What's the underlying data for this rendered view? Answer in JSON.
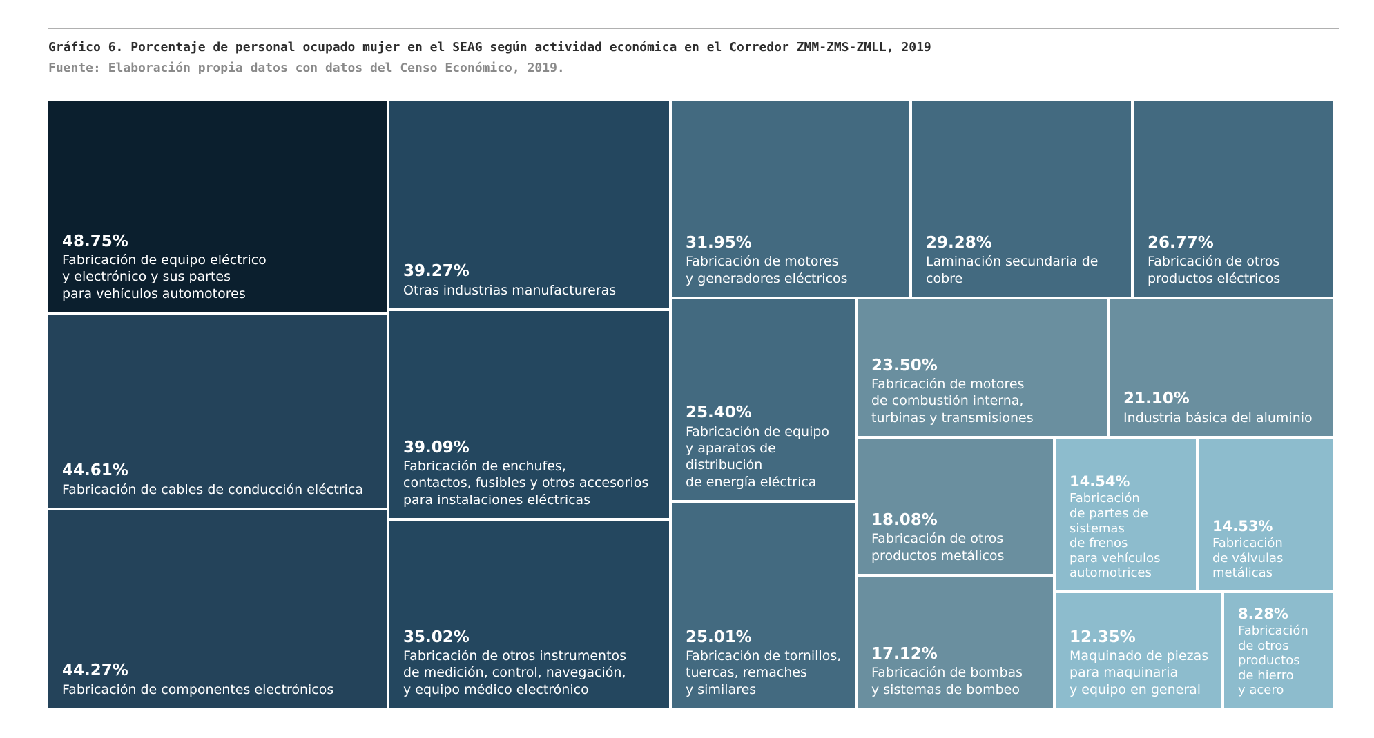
{
  "header": {
    "title": "Gráfico 6. Porcentaje de personal ocupado mujer en el SEAG según actividad económica en el Corredor ZMM-ZMS-ZMLL, 2019",
    "source": "Fuente: Elaboración propia datos con datos del Censo Económico, 2019."
  },
  "chart_data": {
    "type": "treemap",
    "title": "Gráfico 6. Porcentaje de personal ocupado mujer en el SEAG según actividad económica en el Corredor ZMM-ZMS-ZMLL, 2019",
    "source": "Fuente: Elaboración propia datos con datos del Censo Económico, 2019.",
    "unit": "%",
    "color_scale": [
      "#0b1f2e",
      "#24475f",
      "#436a80",
      "#6a8f9f",
      "#8dbccd"
    ],
    "items": [
      {
        "value": 48.75,
        "display": "48.75%",
        "label": "Fabricación de equipo eléctrico\ny electrónico y sus partes\npara vehículos automotores",
        "color": "#0b1f2e"
      },
      {
        "value": 44.61,
        "display": "44.61%",
        "label": "Fabricación de cables de conducción eléctrica",
        "color": "#24435a"
      },
      {
        "value": 44.27,
        "display": "44.27%",
        "label": "Fabricación de componentes electrónicos",
        "color": "#24435a"
      },
      {
        "value": 39.27,
        "display": "39.27%",
        "label": "Otras industrias manufactureras",
        "color": "#24475f"
      },
      {
        "value": 39.09,
        "display": "39.09%",
        "label": "Fabricación de enchufes,\ncontactos, fusibles y otros accesorios\npara instalaciones eléctricas",
        "color": "#24475f"
      },
      {
        "value": 35.02,
        "display": "35.02%",
        "label": "Fabricación de otros instrumentos\nde medición, control, navegación,\ny equipo médico electrónico",
        "color": "#24475f"
      },
      {
        "value": 31.95,
        "display": "31.95%",
        "label": "Fabricación de motores\ny generadores eléctricos",
        "color": "#436a80"
      },
      {
        "value": 29.28,
        "display": "29.28%",
        "label": "Laminación secundaria de cobre",
        "color": "#436a80"
      },
      {
        "value": 26.77,
        "display": "26.77%",
        "label": "Fabricación de otros\nproductos eléctricos",
        "color": "#436a80"
      },
      {
        "value": 25.4,
        "display": "25.40%",
        "label": "Fabricación de equipo\ny aparatos de distribución\nde energía eléctrica",
        "color": "#436a80"
      },
      {
        "value": 25.01,
        "display": "25.01%",
        "label": "Fabricación de tornillos,\ntuercas, remaches\ny similares",
        "color": "#436a80"
      },
      {
        "value": 23.5,
        "display": "23.50%",
        "label": "Fabricación de motores\nde combustión interna,\nturbinas y transmisiones",
        "color": "#6a8f9f"
      },
      {
        "value": 21.1,
        "display": "21.10%",
        "label": "Industria básica del aluminio",
        "color": "#6a8f9f"
      },
      {
        "value": 18.08,
        "display": "18.08%",
        "label": "Fabricación de otros\nproductos metálicos",
        "color": "#6a8f9f"
      },
      {
        "value": 17.12,
        "display": "17.12%",
        "label": "Fabricación de bombas\ny sistemas de bombeo",
        "color": "#6a8f9f"
      },
      {
        "value": 14.54,
        "display": "14.54%",
        "label": "Fabricación\nde partes de\nsistemas\nde frenos\npara vehículos\nautomotrices",
        "color": "#8dbccd"
      },
      {
        "value": 14.53,
        "display": "14.53%",
        "label": "Fabricación\nde válvulas\nmetálicas",
        "color": "#8dbccd"
      },
      {
        "value": 12.35,
        "display": "12.35%",
        "label": "Maquinado de piezas\npara maquinaria\ny equipo en general",
        "color": "#8dbccd"
      },
      {
        "value": 8.28,
        "display": "8.28%",
        "label": "Fabricación\nde otros\nproductos\nde hierro\ny acero",
        "color": "#8dbccd"
      }
    ]
  }
}
